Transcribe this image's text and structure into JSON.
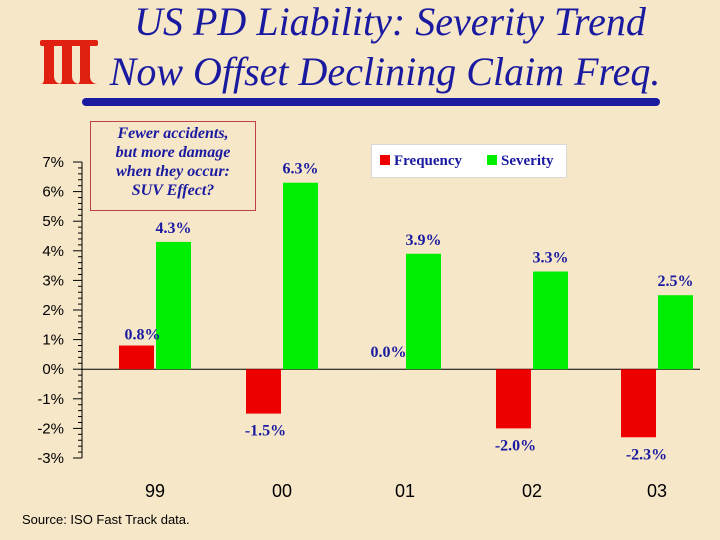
{
  "title": {
    "line1": "US PD Liability: Severity Trend",
    "line2": "Now Offset Declining Claim Freq."
  },
  "callout": {
    "lines": [
      "Fewer accidents,",
      "but more damage",
      "when they occur:",
      "SUV Effect?"
    ]
  },
  "source": "Source: ISO Fast Track data.",
  "colors": {
    "frequency": "#ee0000",
    "severity": "#00ee00",
    "title": "#1a1aa0",
    "background": "#f6e7c8"
  },
  "chart_data": {
    "type": "bar",
    "title": "US PD Liability: Severity Trend Now Offset Declining Claim Freq.",
    "categories": [
      "99",
      "00",
      "01",
      "02",
      "03"
    ],
    "series": [
      {
        "name": "Frequency",
        "values": [
          0.8,
          -1.5,
          0.0,
          -2.0,
          -2.3
        ],
        "labels": [
          "0.8%",
          "-1.5%",
          "0.0%",
          "-2.0%",
          "-2.3%"
        ]
      },
      {
        "name": "Severity",
        "values": [
          4.3,
          6.3,
          3.9,
          3.3,
          2.5
        ],
        "labels": [
          "4.3%",
          "6.3%",
          "3.9%",
          "3.3%",
          "2.5%"
        ]
      }
    ],
    "ylim": [
      -3,
      7
    ],
    "yticks": [
      "7%",
      "6%",
      "5%",
      "4%",
      "3%",
      "2%",
      "1%",
      "0%",
      "-1%",
      "-2%",
      "-3%"
    ],
    "legend": "top-right",
    "xlabel": "",
    "ylabel": ""
  }
}
